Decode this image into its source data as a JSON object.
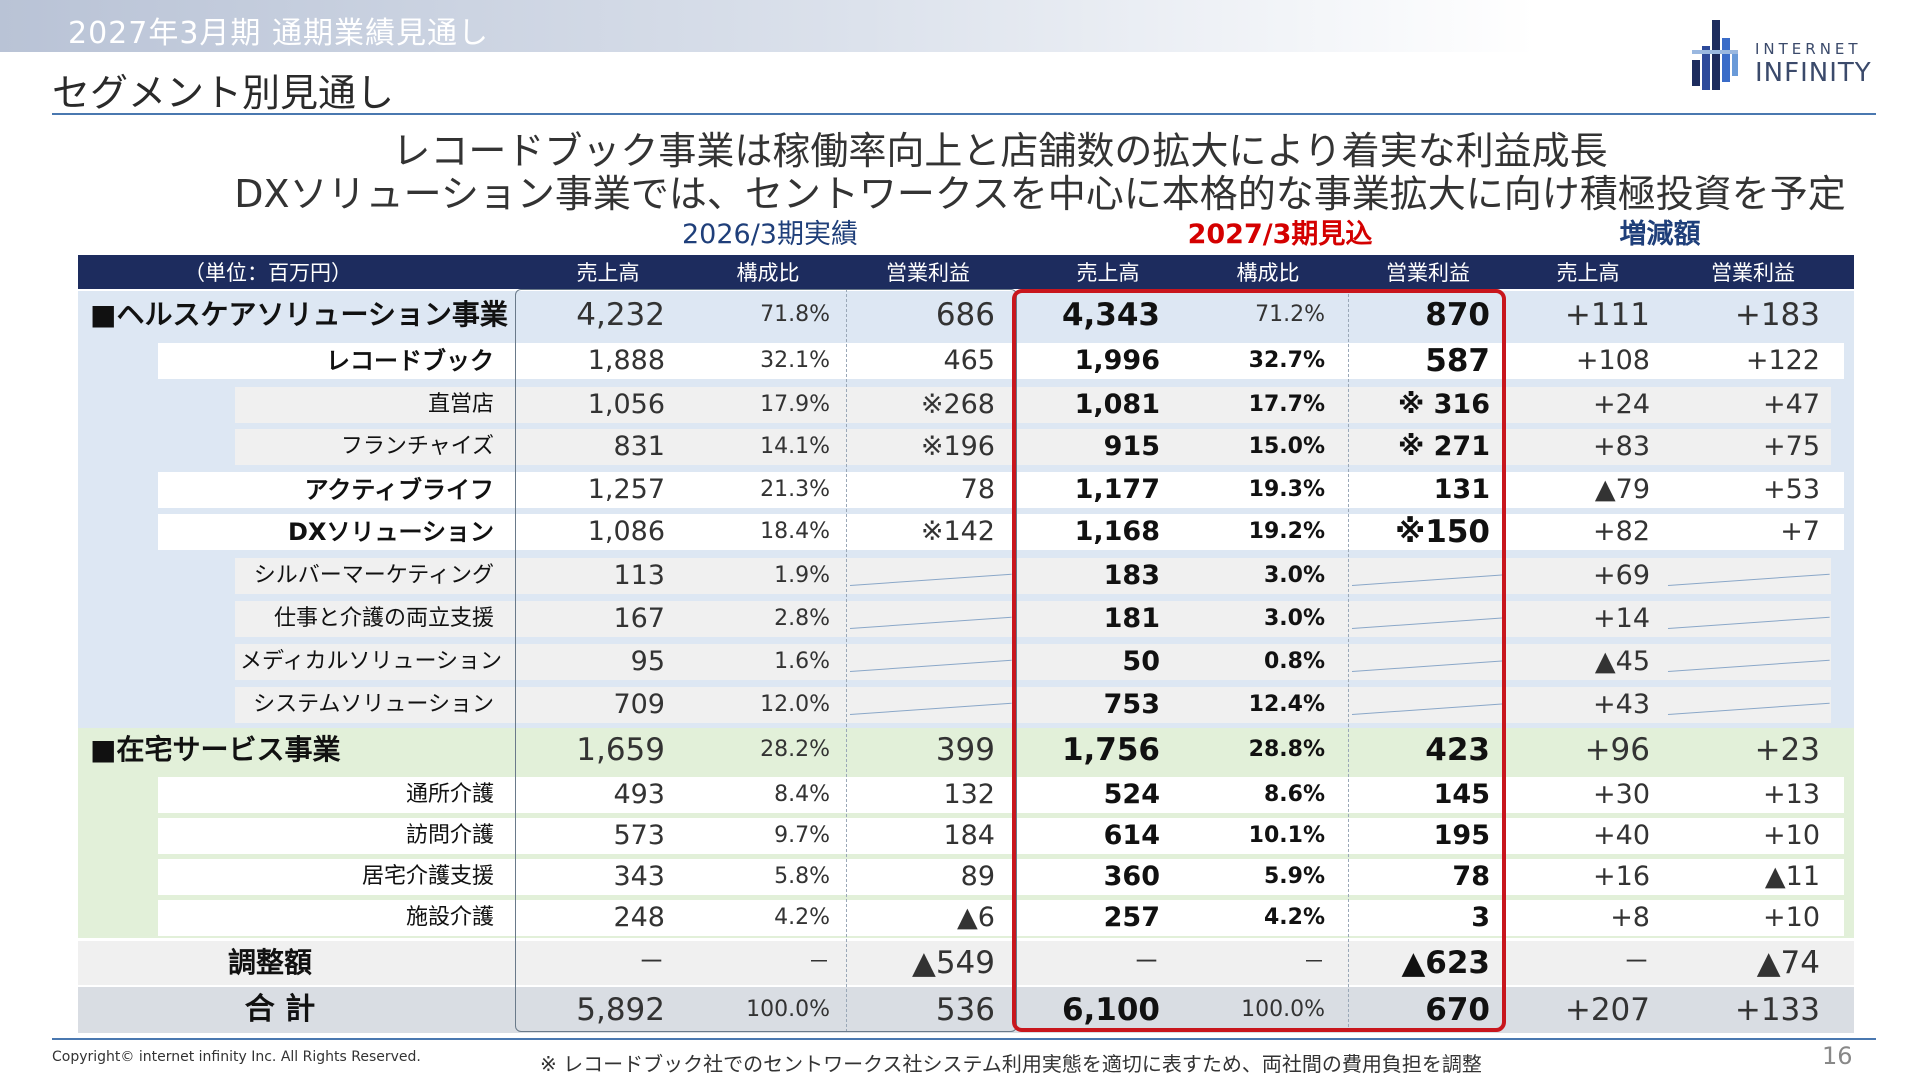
{
  "header": {
    "period": "2027年3月期 通期業績見通し",
    "section_title": "セグメント別見通し",
    "logo_line1": "INTERNET",
    "logo_line2": "INFINITY"
  },
  "headline": {
    "line1": "レコードブック事業は稼働率向上と店舗数の拡大により着実な利益成長",
    "line2": "DXソリューション事業では、セントワークスを中心に本格的な事業拡大に向け積極投資を予定"
  },
  "groups": {
    "actual": "2026/3期実績",
    "forecast": "2027/3期見込",
    "delta": "増減額"
  },
  "columns": {
    "unit": "（単位：百万円）",
    "sales_a": "売上高",
    "ratio_a": "構成比",
    "op_a": "営業利益",
    "sales_f": "売上高",
    "ratio_f": "構成比",
    "op_f": "営業利益",
    "sales_d": "売上高",
    "op_d": "営業利益"
  },
  "rows": [
    {
      "label": "■ヘルスケアソリューション事業",
      "sa": "4,232",
      "ra": "71.8%",
      "oa": "686",
      "sf": "4,343",
      "rf": "71.2%",
      "of": "870",
      "sd": "+111",
      "od": "+183"
    },
    {
      "label": "レコードブック",
      "sa": "1,888",
      "ra": "32.1%",
      "oa": "465",
      "sf": "1,996",
      "rf": "32.7%",
      "of": "587",
      "sd": "+108",
      "od": "+122"
    },
    {
      "label": "直営店",
      "sa": "1,056",
      "ra": "17.9%",
      "oa": "※268",
      "sf": "1,081",
      "rf": "17.7%",
      "of": "※ 316",
      "sd": "+24",
      "od": "+47"
    },
    {
      "label": "フランチャイズ",
      "sa": "831",
      "ra": "14.1%",
      "oa": "※196",
      "sf": "915",
      "rf": "15.0%",
      "of": "※ 271",
      "sd": "+83",
      "od": "+75"
    },
    {
      "label": "アクティブライフ",
      "sa": "1,257",
      "ra": "21.3%",
      "oa": "78",
      "sf": "1,177",
      "rf": "19.3%",
      "of": "131",
      "sd": "▲79",
      "od": "+53"
    },
    {
      "label": "DXソリューション",
      "sa": "1,086",
      "ra": "18.4%",
      "oa": "※142",
      "sf": "1,168",
      "rf": "19.2%",
      "of": "※150",
      "sd": "+82",
      "od": "+7"
    },
    {
      "label": "シルバーマーケティング",
      "sa": "113",
      "ra": "1.9%",
      "oa": "",
      "sf": "183",
      "rf": "3.0%",
      "of": "",
      "sd": "+69",
      "od": ""
    },
    {
      "label": "仕事と介護の両立支援",
      "sa": "167",
      "ra": "2.8%",
      "oa": "",
      "sf": "181",
      "rf": "3.0%",
      "of": "",
      "sd": "+14",
      "od": ""
    },
    {
      "label": "メディカルソリューション",
      "sa": "95",
      "ra": "1.6%",
      "oa": "",
      "sf": "50",
      "rf": "0.8%",
      "of": "",
      "sd": "▲45",
      "od": ""
    },
    {
      "label": "システムソリューション",
      "sa": "709",
      "ra": "12.0%",
      "oa": "",
      "sf": "753",
      "rf": "12.4%",
      "of": "",
      "sd": "+43",
      "od": ""
    },
    {
      "label": "■在宅サービス事業",
      "sa": "1,659",
      "ra": "28.2%",
      "oa": "399",
      "sf": "1,756",
      "rf": "28.8%",
      "of": "423",
      "sd": "+96",
      "od": "+23"
    },
    {
      "label": "通所介護",
      "sa": "493",
      "ra": "8.4%",
      "oa": "132",
      "sf": "524",
      "rf": "8.6%",
      "of": "145",
      "sd": "+30",
      "od": "+13"
    },
    {
      "label": "訪問介護",
      "sa": "573",
      "ra": "9.7%",
      "oa": "184",
      "sf": "614",
      "rf": "10.1%",
      "of": "195",
      "sd": "+40",
      "od": "+10"
    },
    {
      "label": "居宅介護支援",
      "sa": "343",
      "ra": "5.8%",
      "oa": "89",
      "sf": "360",
      "rf": "5.9%",
      "of": "78",
      "sd": "+16",
      "od": "▲11"
    },
    {
      "label": "施設介護",
      "sa": "248",
      "ra": "4.2%",
      "oa": "▲6",
      "sf": "257",
      "rf": "4.2%",
      "of": "3",
      "sd": "+8",
      "od": "+10"
    },
    {
      "label": "調整額",
      "sa": "－",
      "ra": "－",
      "oa": "▲549",
      "sf": "－",
      "rf": "－",
      "of": "▲623",
      "sd": "－",
      "od": "▲74"
    },
    {
      "label": "合 計",
      "sa": "5,892",
      "ra": "100.0%",
      "oa": "536",
      "sf": "6,100",
      "rf": "100.0%",
      "of": "670",
      "sd": "+207",
      "od": "+133"
    }
  ],
  "footer": {
    "copyright": "Copyright© internet infinity Inc. All Rights Reserved.",
    "note": "※ レコードブック社でのセントワークス社システム利用実態を適切に表すため、両社間の費用負担を調整",
    "page": "16"
  },
  "colors": {
    "header_navy": "#1d2c5e",
    "healthcare_band": "#dde7f3",
    "homecare_band": "#e2f0d9",
    "total_band": "#d9dde3",
    "forecast_red": "#c8161d"
  }
}
